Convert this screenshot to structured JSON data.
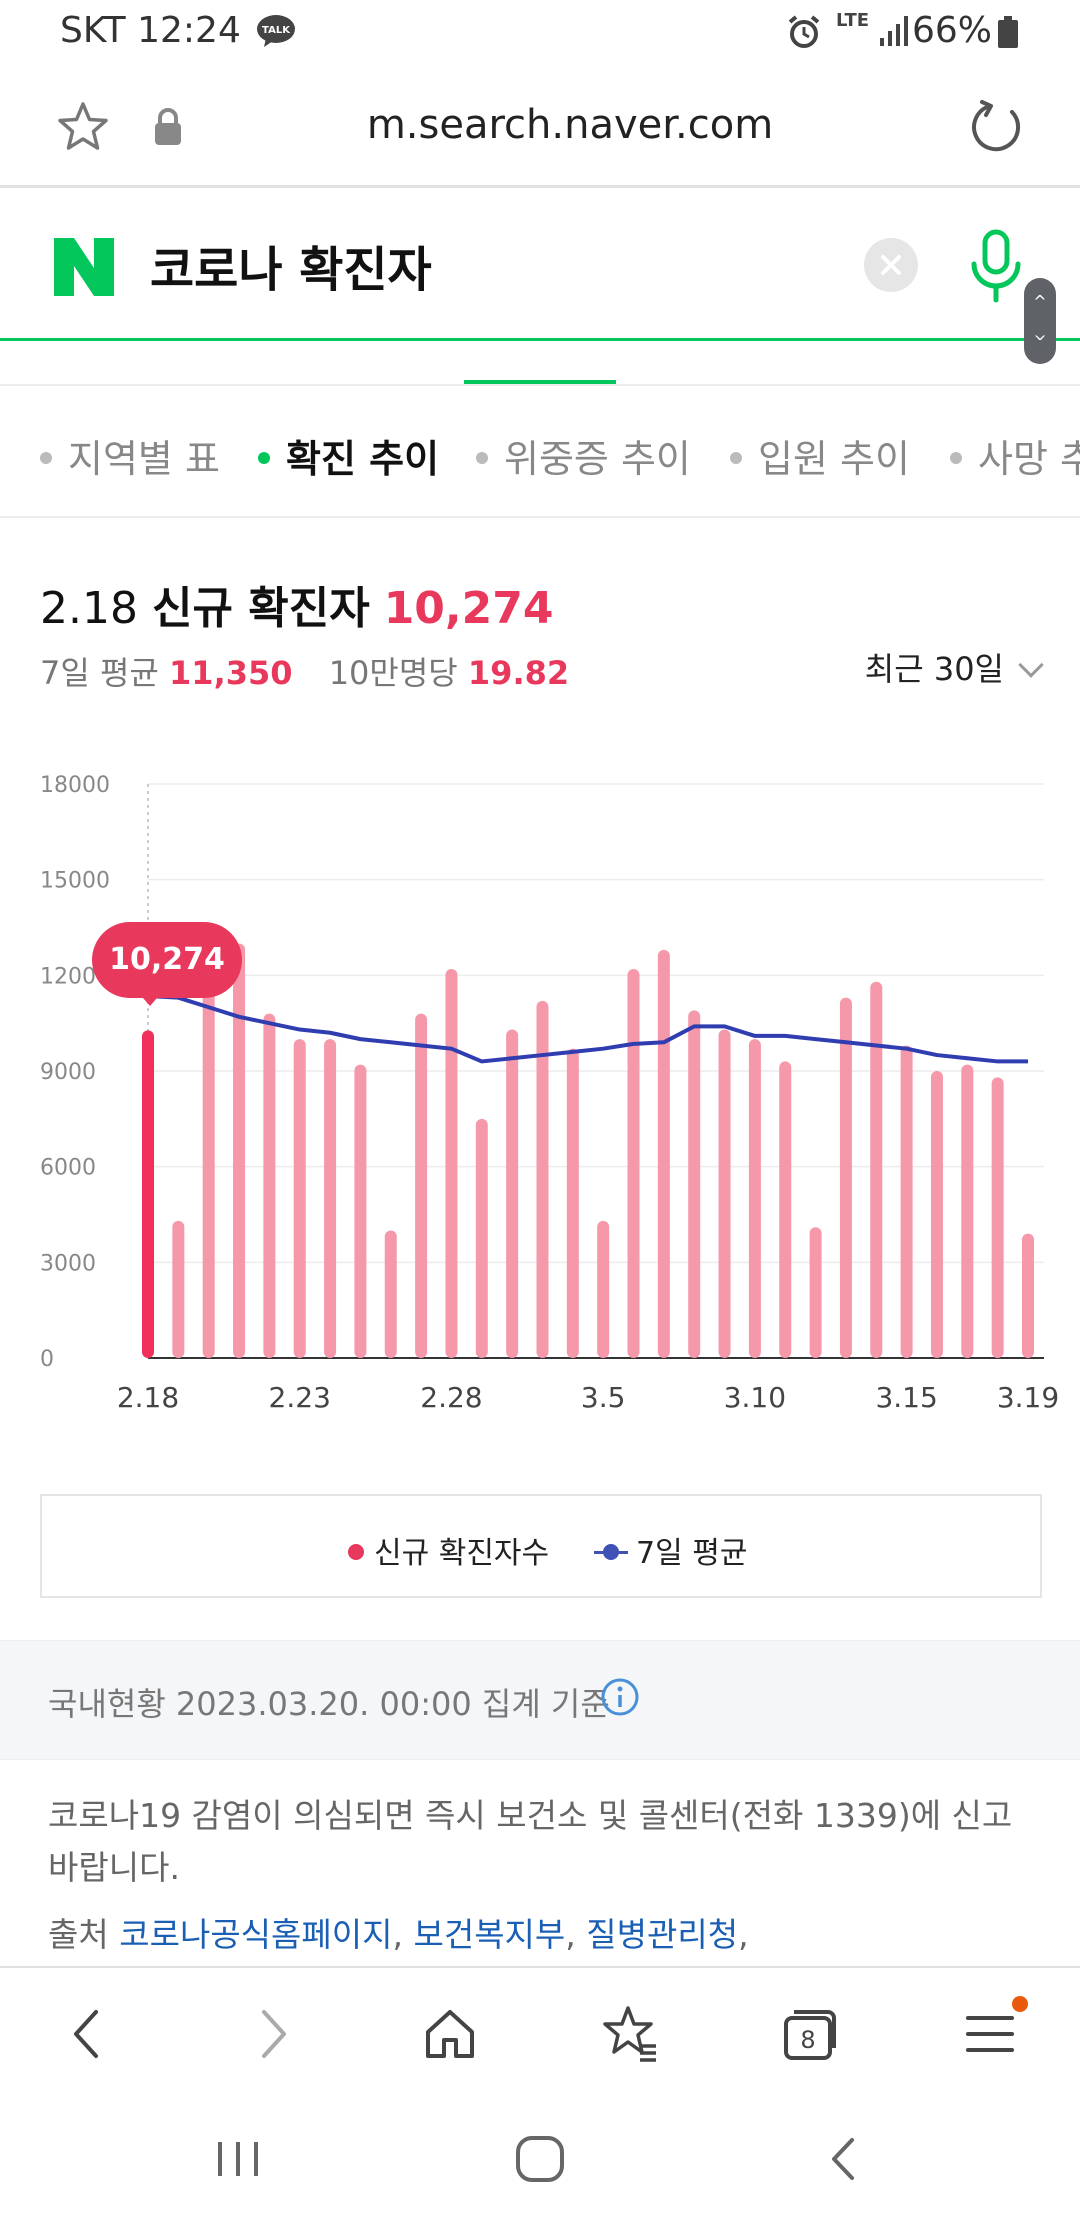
{
  "status_bar": {
    "carrier_time": "SKT 12:24",
    "talk_badge": "TALK",
    "network": "LTE",
    "battery": "66%",
    "icons": [
      "talk-icon",
      "alarm-icon",
      "signal-icon",
      "battery-icon"
    ]
  },
  "browser": {
    "url": "m.search.naver.com",
    "tab_count": "8"
  },
  "search": {
    "logo": "N",
    "query": "코로나 확진자"
  },
  "sub_tabs": [
    {
      "label": "지역별 표",
      "active": false
    },
    {
      "label": "확진 추이",
      "active": true
    },
    {
      "label": "위중증 추이",
      "active": false
    },
    {
      "label": "입원 추이",
      "active": false
    },
    {
      "label": "사망 추이",
      "active": false
    }
  ],
  "headline": {
    "date": "2.18",
    "label": "신규 확진자",
    "value": "10,274"
  },
  "stats": {
    "avg7_label": "7일 평균",
    "avg7_value": "11,350",
    "per100k_label": "10만명당",
    "per100k_value": "19.82",
    "range": "최근 30일"
  },
  "tooltip": "10,274",
  "chart_data": {
    "type": "bar",
    "title": "",
    "ylim": [
      0,
      18000
    ],
    "yticks": [
      "0",
      "3000",
      "6000",
      "9000",
      "12000",
      "15000",
      "18000"
    ],
    "xtick_labels": [
      "2.18",
      "2.23",
      "2.28",
      "3.5",
      "3.10",
      "3.15",
      "3.19"
    ],
    "xtick_index": [
      0,
      5,
      10,
      15,
      20,
      25,
      29
    ],
    "highlight_index": 0,
    "colors": {
      "bar": "#f598aa",
      "highlight": "#f0305a",
      "avg": "#2f3db0",
      "grid": "#ececec"
    },
    "series": [
      {
        "name": "신규 확진자수",
        "type": "bar",
        "values": [
          10274,
          4300,
          11700,
          13000,
          10800,
          10000,
          10000,
          9200,
          4000,
          10800,
          12200,
          7500,
          10300,
          11200,
          9700,
          4300,
          12200,
          12800,
          10900,
          10300,
          10000,
          9300,
          4100,
          11300,
          11800,
          9800,
          9000,
          9200,
          8800,
          3900
        ]
      },
      {
        "name": "7일 평균",
        "type": "line",
        "values": [
          11350,
          11300,
          11000,
          10700,
          10500,
          10300,
          10200,
          10000,
          9900,
          9800,
          9700,
          9300,
          9400,
          9500,
          9600,
          9700,
          9850,
          9900,
          10400,
          10400,
          10100,
          10100,
          10000,
          9900,
          9800,
          9700,
          9500,
          9400,
          9300,
          9300
        ]
      }
    ]
  },
  "legend": {
    "new_cases": "신규 확진자수",
    "avg7": "7일 평균"
  },
  "info": {
    "status": "국내현황 2023.03.20. 00:00 집계 기준",
    "notice": "코로나19 감염이 의심되면 즉시 보건소 및 콜센터(전화 1339)에 신고 바랍니다.",
    "source_label": "출처",
    "sources": [
      "코로나공식홈페이지",
      "보건복지부",
      "질병관리청"
    ]
  }
}
